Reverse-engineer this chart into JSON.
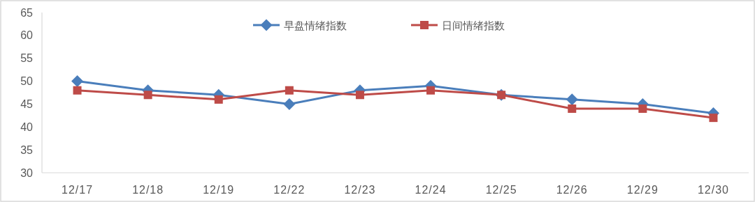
{
  "chart_data": {
    "type": "line",
    "categories": [
      "12/17",
      "12/18",
      "12/19",
      "12/22",
      "12/23",
      "12/24",
      "12/25",
      "12/26",
      "12/29",
      "12/30"
    ],
    "series": [
      {
        "name": "早盘情绪指数",
        "color": "#4a7ebb",
        "marker": "diamond",
        "values": [
          50,
          48,
          47,
          45,
          48,
          49,
          47,
          46,
          45,
          43
        ]
      },
      {
        "name": "日间情绪指数",
        "color": "#be4b48",
        "marker": "square",
        "values": [
          48,
          47,
          46,
          48,
          47,
          48,
          47,
          44,
          44,
          42
        ]
      }
    ],
    "ylim": [
      30,
      65
    ],
    "yticks": [
      30,
      35,
      40,
      45,
      50,
      55,
      60,
      65
    ],
    "grid": false,
    "legend": "top",
    "line_style": "solid"
  }
}
